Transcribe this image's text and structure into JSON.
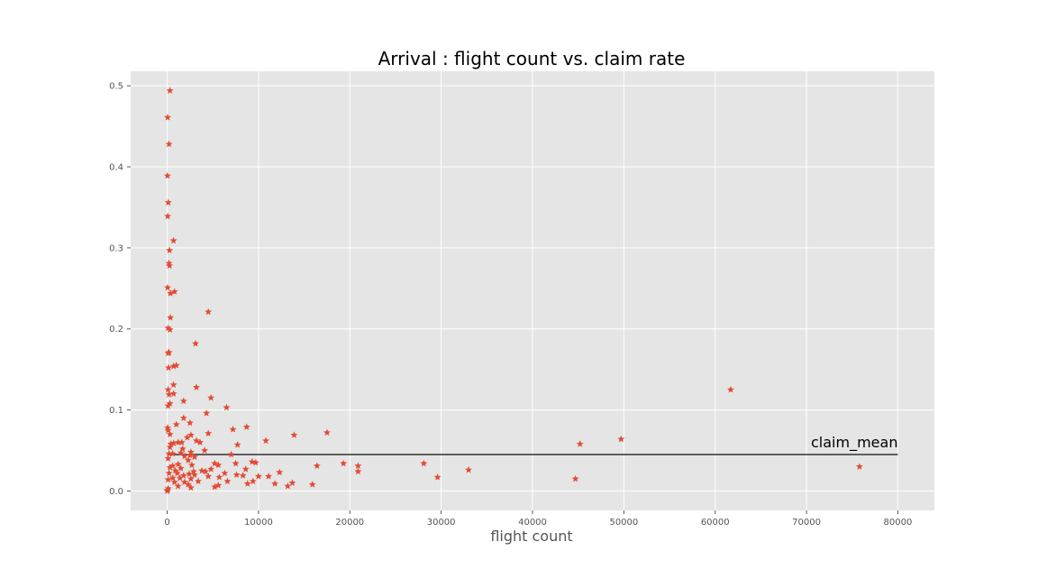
{
  "chart_data": {
    "type": "scatter",
    "title": "Arrival : flight count vs. claim rate",
    "xlabel": "flight count",
    "ylabel": "",
    "xlim": [
      -4000,
      84000
    ],
    "ylim": [
      -0.024,
      0.518
    ],
    "xticks": [
      0,
      10000,
      20000,
      30000,
      40000,
      50000,
      60000,
      70000,
      80000
    ],
    "xtick_labels": [
      "0",
      "10000",
      "20000",
      "30000",
      "40000",
      "50000",
      "60000",
      "70000",
      "80000"
    ],
    "yticks": [
      0.0,
      0.1,
      0.2,
      0.3,
      0.4,
      0.5
    ],
    "ytick_labels": [
      "0.0",
      "0.1",
      "0.2",
      "0.3",
      "0.4",
      "0.5"
    ],
    "grid": true,
    "style": "ggplot",
    "marker": "star",
    "colors": {
      "points": "#e24a33",
      "mean_line": "#333333",
      "plot_bg": "#e5e5e5",
      "grid": "#ffffff"
    },
    "mean_line": {
      "label": "claim_mean",
      "y": 0.045,
      "x_range": [
        0,
        80000
      ]
    },
    "points": [
      [
        300,
        0.494
      ],
      [
        50,
        0.461
      ],
      [
        200,
        0.428
      ],
      [
        30,
        0.389
      ],
      [
        120,
        0.356
      ],
      [
        60,
        0.339
      ],
      [
        700,
        0.309
      ],
      [
        250,
        0.297
      ],
      [
        200,
        0.281
      ],
      [
        250,
        0.278
      ],
      [
        50,
        0.251
      ],
      [
        800,
        0.246
      ],
      [
        350,
        0.244
      ],
      [
        4500,
        0.221
      ],
      [
        350,
        0.214
      ],
      [
        100,
        0.201
      ],
      [
        300,
        0.199
      ],
      [
        3100,
        0.182
      ],
      [
        100,
        0.17
      ],
      [
        200,
        0.171
      ],
      [
        1000,
        0.155
      ],
      [
        700,
        0.154
      ],
      [
        150,
        0.152
      ],
      [
        700,
        0.131
      ],
      [
        3200,
        0.128
      ],
      [
        100,
        0.125
      ],
      [
        700,
        0.12
      ],
      [
        200,
        0.119
      ],
      [
        4800,
        0.115
      ],
      [
        1800,
        0.111
      ],
      [
        300,
        0.108
      ],
      [
        100,
        0.105
      ],
      [
        6500,
        0.103
      ],
      [
        4300,
        0.096
      ],
      [
        1800,
        0.09
      ],
      [
        2500,
        0.084
      ],
      [
        1000,
        0.082
      ],
      [
        8700,
        0.079
      ],
      [
        50,
        0.078
      ],
      [
        100,
        0.075
      ],
      [
        7200,
        0.076
      ],
      [
        17500,
        0.072
      ],
      [
        4500,
        0.071
      ],
      [
        13900,
        0.069
      ],
      [
        2600,
        0.069
      ],
      [
        300,
        0.07
      ],
      [
        2200,
        0.066
      ],
      [
        61700,
        0.125
      ],
      [
        49700,
        0.064
      ],
      [
        10800,
        0.062
      ],
      [
        3200,
        0.062
      ],
      [
        3600,
        0.06
      ],
      [
        1600,
        0.06
      ],
      [
        1200,
        0.06
      ],
      [
        700,
        0.059
      ],
      [
        400,
        0.058
      ],
      [
        45200,
        0.058
      ],
      [
        7700,
        0.057
      ],
      [
        300,
        0.054
      ],
      [
        1700,
        0.052
      ],
      [
        4100,
        0.05
      ],
      [
        2600,
        0.048
      ],
      [
        1500,
        0.047
      ],
      [
        600,
        0.046
      ],
      [
        200,
        0.046
      ],
      [
        7000,
        0.045
      ],
      [
        2500,
        0.044
      ],
      [
        1900,
        0.043
      ],
      [
        3000,
        0.042
      ],
      [
        100,
        0.04
      ],
      [
        2300,
        0.038
      ],
      [
        9300,
        0.036
      ],
      [
        9700,
        0.035
      ],
      [
        5200,
        0.034
      ],
      [
        19300,
        0.034
      ],
      [
        28100,
        0.034
      ],
      [
        7500,
        0.034
      ],
      [
        1200,
        0.033
      ],
      [
        2700,
        0.032
      ],
      [
        600,
        0.031
      ],
      [
        5600,
        0.032
      ],
      [
        16400,
        0.031
      ],
      [
        20900,
        0.031
      ],
      [
        75800,
        0.03
      ],
      [
        300,
        0.029
      ],
      [
        1500,
        0.028
      ],
      [
        4800,
        0.027
      ],
      [
        8600,
        0.027
      ],
      [
        33000,
        0.026
      ],
      [
        900,
        0.025
      ],
      [
        3800,
        0.025
      ],
      [
        2900,
        0.024
      ],
      [
        4200,
        0.024
      ],
      [
        20900,
        0.024
      ],
      [
        12300,
        0.023
      ],
      [
        6300,
        0.022
      ],
      [
        200,
        0.022
      ],
      [
        1100,
        0.022
      ],
      [
        2400,
        0.021
      ],
      [
        3000,
        0.02
      ],
      [
        7600,
        0.02
      ],
      [
        8300,
        0.019
      ],
      [
        1800,
        0.019
      ],
      [
        4500,
        0.018
      ],
      [
        10000,
        0.018
      ],
      [
        11100,
        0.018
      ],
      [
        29600,
        0.017
      ],
      [
        5700,
        0.017
      ],
      [
        600,
        0.016
      ],
      [
        1400,
        0.016
      ],
      [
        2600,
        0.015
      ],
      [
        44700,
        0.015
      ],
      [
        100,
        0.014
      ],
      [
        6600,
        0.012
      ],
      [
        9400,
        0.012
      ],
      [
        3400,
        0.012
      ],
      [
        1900,
        0.011
      ],
      [
        800,
        0.011
      ],
      [
        13700,
        0.01
      ],
      [
        8800,
        0.009
      ],
      [
        11800,
        0.009
      ],
      [
        15900,
        0.008
      ],
      [
        2300,
        0.008
      ],
      [
        5600,
        0.007
      ],
      [
        1200,
        0.006
      ],
      [
        13200,
        0.006
      ],
      [
        5200,
        0.005
      ],
      [
        2600,
        0.004
      ],
      [
        100,
        0.003
      ],
      [
        50,
        0.001
      ],
      [
        0,
        0.0
      ]
    ]
  }
}
